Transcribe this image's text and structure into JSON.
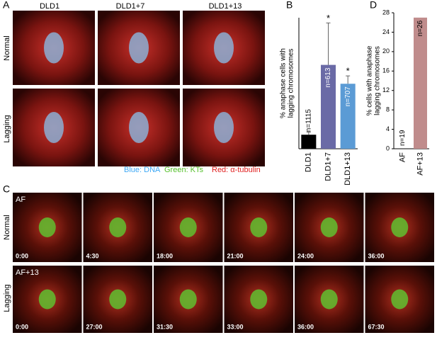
{
  "panel_labels": [
    "A",
    "B",
    "C",
    "D"
  ],
  "panel_a": {
    "columns": [
      "DLD1",
      "DLD1+7",
      "DLD1+13"
    ],
    "rows": [
      "Normal",
      "Lagging"
    ],
    "legend": [
      "Blue: DNA",
      "Green: KTs",
      "Red: α-tubulin"
    ]
  },
  "panel_c": {
    "rows": [
      {
        "label": "Normal",
        "sample": "AF",
        "times": [
          "0:00",
          "4:30",
          "18:00",
          "21:00",
          "24:00",
          "36:00"
        ]
      },
      {
        "label": "Lagging",
        "sample": "AF+13",
        "times": [
          "0:00",
          "27:00",
          "31:30",
          "33:00",
          "36:00",
          "67:30"
        ]
      }
    ]
  },
  "chart_data": [
    {
      "type": "bar",
      "ylabel": [
        "% anaphase cells with",
        "lagging chromosomes"
      ],
      "categories": [
        "DLD1",
        "DLD1+7",
        "DLD1+13"
      ],
      "values": [
        1.07,
        6.4,
        4.96
      ],
      "errors": [
        0.2,
        3.2,
        0.6
      ],
      "colors": [
        "#000000",
        "#6a6aa6",
        "#5b9bd5"
      ],
      "n_labels": [
        "n=1115",
        "n=613",
        "n=707"
      ],
      "annotations": [
        "",
        "*",
        "*"
      ],
      "ylim": [
        0,
        10
      ]
    },
    {
      "type": "bar",
      "ylabel": [
        "% cells with anaphase",
        "lagging chromosomes"
      ],
      "categories": [
        "AF",
        "AF+13"
      ],
      "values": [
        0,
        27
      ],
      "colors": [
        "#c08c8c",
        "#c08c8c"
      ],
      "n_labels": [
        "n=19",
        "n=26"
      ],
      "ylim": [
        0,
        28
      ],
      "yticks": [
        0,
        4,
        8,
        12,
        16,
        20,
        24,
        28
      ]
    }
  ]
}
